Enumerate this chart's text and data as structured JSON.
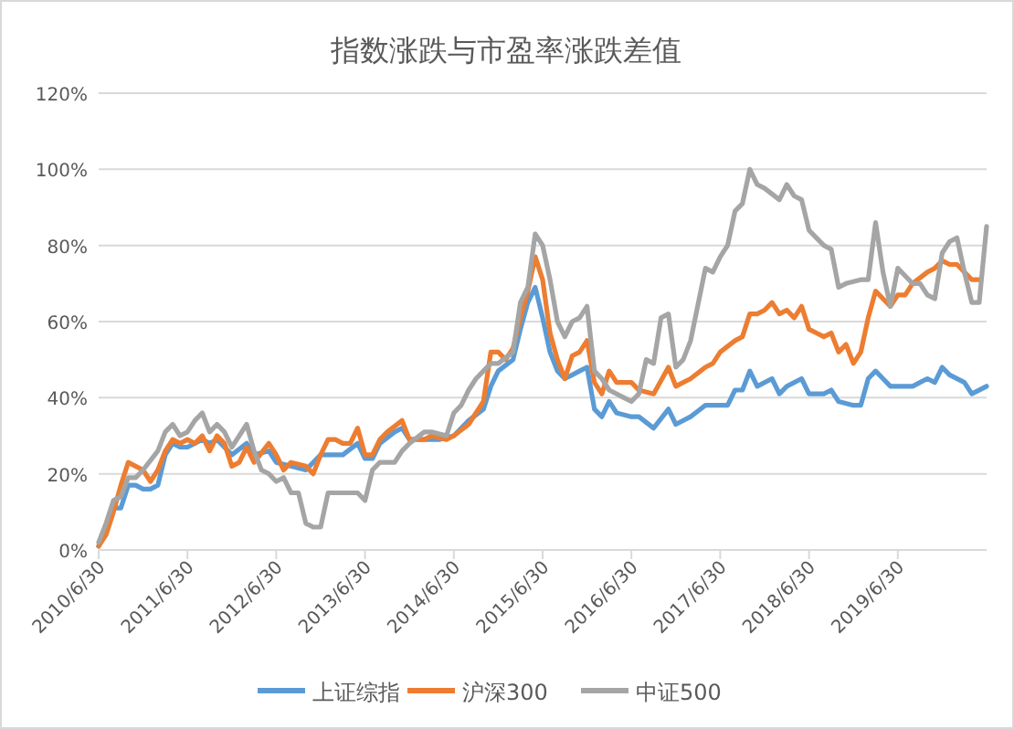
{
  "chart_data": {
    "type": "line",
    "title": "指数涨跌与市盈率涨跌差值",
    "xlim": [
      "2010-06",
      "2020-06"
    ],
    "xticks": [
      {
        "value": "2010-06",
        "label": "2010/6/30"
      },
      {
        "value": "2011-06",
        "label": "2011/6/30"
      },
      {
        "value": "2012-06",
        "label": "2012/6/30"
      },
      {
        "value": "2013-06",
        "label": "2013/6/30"
      },
      {
        "value": "2014-06",
        "label": "2014/6/30"
      },
      {
        "value": "2015-06",
        "label": "2015/6/30"
      },
      {
        "value": "2016-06",
        "label": "2016/6/30"
      },
      {
        "value": "2017-06",
        "label": "2017/6/30"
      },
      {
        "value": "2018-06",
        "label": "2018/6/30"
      },
      {
        "value": "2019-06",
        "label": "2019/6/30"
      }
    ],
    "ylim": [
      0,
      120
    ],
    "yticks": [
      {
        "value": 0,
        "label": "0%"
      },
      {
        "value": 20,
        "label": "20%"
      },
      {
        "value": 40,
        "label": "40%"
      },
      {
        "value": 60,
        "label": "60%"
      },
      {
        "value": 80,
        "label": "80%"
      },
      {
        "value": 100,
        "label": "100%"
      },
      {
        "value": 120,
        "label": "120%"
      }
    ],
    "grid": "y",
    "legend": "bottom",
    "marker": "none",
    "line_style": "solid",
    "series": [
      {
        "name": "上证综指",
        "color": "#5b9bd5",
        "x": [
          "2010-06",
          "2010-07",
          "2010-08",
          "2010-09",
          "2010-10",
          "2010-11",
          "2010-12",
          "2011-01",
          "2011-02",
          "2011-03",
          "2011-04",
          "2011-05",
          "2011-06",
          "2011-08",
          "2011-09",
          "2011-10",
          "2011-12",
          "2012-02",
          "2012-03",
          "2012-05",
          "2012-06",
          "2012-08",
          "2012-10",
          "2012-12",
          "2013-01",
          "2013-03",
          "2013-05",
          "2013-06",
          "2013-07",
          "2013-08",
          "2013-10",
          "2013-11",
          "2013-12",
          "2014-02",
          "2014-04",
          "2014-06",
          "2014-08",
          "2014-10",
          "2014-11",
          "2014-12",
          "2015-02",
          "2015-03",
          "2015-04",
          "2015-05",
          "2015-06",
          "2015-07",
          "2015-08",
          "2015-09",
          "2015-10",
          "2015-11",
          "2015-12",
          "2016-01",
          "2016-02",
          "2016-03",
          "2016-04",
          "2016-06",
          "2016-07",
          "2016-09",
          "2016-11",
          "2016-12",
          "2017-02",
          "2017-04",
          "2017-06",
          "2017-07",
          "2017-08",
          "2017-09",
          "2017-10",
          "2017-11",
          "2018-01",
          "2018-02",
          "2018-03",
          "2018-05",
          "2018-06",
          "2018-08",
          "2018-09",
          "2018-10",
          "2018-12",
          "2019-01",
          "2019-02",
          "2019-03",
          "2019-04",
          "2019-05",
          "2019-06",
          "2019-08",
          "2019-09",
          "2019-10",
          "2019-11",
          "2019-12",
          "2020-01",
          "2020-03",
          "2020-04",
          "2020-06"
        ],
        "values": [
          1,
          5,
          11,
          11,
          17,
          17,
          16,
          16,
          17,
          25,
          28,
          27,
          27,
          29,
          28,
          29,
          25,
          28,
          25,
          26,
          23,
          22,
          21,
          25,
          25,
          25,
          28,
          24,
          24,
          28,
          31,
          32,
          29,
          29,
          29,
          30,
          34,
          37,
          43,
          47,
          50,
          58,
          65,
          69,
          61,
          52,
          47,
          45,
          46,
          47,
          48,
          37,
          35,
          39,
          36,
          35,
          35,
          32,
          37,
          33,
          35,
          38,
          38,
          38,
          42,
          42,
          47,
          43,
          45,
          41,
          43,
          45,
          41,
          41,
          42,
          39,
          38,
          38,
          45,
          47,
          45,
          43,
          43,
          43,
          44,
          45,
          44,
          48,
          46,
          44,
          41,
          43
        ]
      },
      {
        "name": "沪深300",
        "color": "#ed7d31",
        "x": [
          "2010-06",
          "2010-07",
          "2010-08",
          "2010-09",
          "2010-10",
          "2010-11",
          "2010-12",
          "2011-01",
          "2011-02",
          "2011-03",
          "2011-04",
          "2011-05",
          "2011-06",
          "2011-07",
          "2011-08",
          "2011-09",
          "2011-10",
          "2011-11",
          "2011-12",
          "2012-01",
          "2012-02",
          "2012-03",
          "2012-05",
          "2012-06",
          "2012-07",
          "2012-08",
          "2012-10",
          "2012-11",
          "2012-12",
          "2013-01",
          "2013-02",
          "2013-03",
          "2013-04",
          "2013-05",
          "2013-06",
          "2013-07",
          "2013-08",
          "2013-09",
          "2013-11",
          "2013-12",
          "2014-02",
          "2014-03",
          "2014-05",
          "2014-06",
          "2014-08",
          "2014-10",
          "2014-11",
          "2014-12",
          "2015-01",
          "2015-02",
          "2015-03",
          "2015-04",
          "2015-05",
          "2015-06",
          "2015-07",
          "2015-08",
          "2015-09",
          "2015-10",
          "2015-11",
          "2015-12",
          "2016-01",
          "2016-02",
          "2016-03",
          "2016-04",
          "2016-06",
          "2016-07",
          "2016-09",
          "2016-11",
          "2016-12",
          "2017-01",
          "2017-02",
          "2017-04",
          "2017-05",
          "2017-06",
          "2017-08",
          "2017-09",
          "2017-10",
          "2017-11",
          "2017-12",
          "2018-01",
          "2018-02",
          "2018-03",
          "2018-04",
          "2018-05",
          "2018-06",
          "2018-07",
          "2018-08",
          "2018-09",
          "2018-10",
          "2018-11",
          "2018-12",
          "2019-01",
          "2019-02",
          "2019-03",
          "2019-04",
          "2019-05",
          "2019-06",
          "2019-07",
          "2019-08",
          "2019-10",
          "2019-11",
          "2019-12",
          "2020-01",
          "2020-02",
          "2020-03",
          "2020-04",
          "2020-05"
        ],
        "values": [
          1,
          4,
          10,
          17,
          23,
          22,
          21,
          18,
          21,
          26,
          29,
          28,
          29,
          28,
          30,
          26,
          30,
          28,
          22,
          23,
          27,
          23,
          28,
          25,
          21,
          23,
          22,
          20,
          25,
          29,
          29,
          28,
          28,
          32,
          25,
          25,
          29,
          31,
          34,
          29,
          29,
          30,
          29,
          30,
          33,
          39,
          52,
          52,
          50,
          53,
          61,
          68,
          77,
          71,
          57,
          50,
          45,
          51,
          52,
          55,
          44,
          41,
          47,
          44,
          44,
          42,
          41,
          48,
          43,
          44,
          45,
          48,
          49,
          52,
          55,
          56,
          62,
          62,
          63,
          65,
          62,
          63,
          61,
          64,
          58,
          57,
          56,
          57,
          52,
          54,
          49,
          52,
          61,
          68,
          66,
          64,
          67,
          67,
          70,
          73,
          74,
          76,
          75,
          75,
          73,
          71,
          71
        ]
      },
      {
        "name": "中证500",
        "color": "#a5a5a5",
        "x": [
          "2010-06",
          "2010-07",
          "2010-08",
          "2010-09",
          "2010-10",
          "2010-11",
          "2010-12",
          "2011-02",
          "2011-03",
          "2011-04",
          "2011-05",
          "2011-06",
          "2011-07",
          "2011-08",
          "2011-09",
          "2011-10",
          "2011-11",
          "2011-12",
          "2012-02",
          "2012-03",
          "2012-04",
          "2012-05",
          "2012-06",
          "2012-07",
          "2012-08",
          "2012-09",
          "2012-10",
          "2012-11",
          "2012-12",
          "2013-01",
          "2013-02",
          "2013-03",
          "2013-05",
          "2013-06",
          "2013-07",
          "2013-08",
          "2013-10",
          "2013-11",
          "2013-12",
          "2014-02",
          "2014-03",
          "2014-05",
          "2014-06",
          "2014-07",
          "2014-08",
          "2014-09",
          "2014-10",
          "2014-11",
          "2014-12",
          "2015-02",
          "2015-03",
          "2015-04",
          "2015-05",
          "2015-06",
          "2015-07",
          "2015-08",
          "2015-09",
          "2015-10",
          "2015-11",
          "2015-12",
          "2016-01",
          "2016-02",
          "2016-03",
          "2016-05",
          "2016-06",
          "2016-07",
          "2016-08",
          "2016-09",
          "2016-10",
          "2016-11",
          "2016-12",
          "2017-01",
          "2017-02",
          "2017-04",
          "2017-05",
          "2017-06",
          "2017-07",
          "2017-08",
          "2017-09",
          "2017-10",
          "2017-11",
          "2017-12",
          "2018-02",
          "2018-03",
          "2018-04",
          "2018-05",
          "2018-06",
          "2018-07",
          "2018-08",
          "2018-09",
          "2018-10",
          "2018-11",
          "2019-01",
          "2019-02",
          "2019-03",
          "2019-04",
          "2019-05",
          "2019-06",
          "2019-07",
          "2019-08",
          "2019-09",
          "2019-10",
          "2019-11",
          "2019-12",
          "2020-01",
          "2020-02",
          "2020-03",
          "2020-04",
          "2020-05",
          "2020-06"
        ],
        "values": [
          2,
          7,
          13,
          14,
          19,
          19,
          21,
          26,
          31,
          33,
          30,
          31,
          34,
          36,
          31,
          33,
          31,
          27,
          33,
          26,
          21,
          20,
          18,
          19,
          15,
          15,
          7,
          6,
          6,
          15,
          15,
          15,
          15,
          13,
          21,
          23,
          23,
          26,
          28,
          31,
          31,
          30,
          36,
          38,
          42,
          45,
          47,
          49,
          49,
          52,
          65,
          69,
          83,
          80,
          71,
          60,
          56,
          60,
          61,
          64,
          47,
          45,
          42,
          40,
          39,
          41,
          50,
          49,
          61,
          62,
          48,
          50,
          55,
          74,
          73,
          77,
          80,
          89,
          91,
          100,
          96,
          95,
          92,
          96,
          93,
          92,
          84,
          82,
          80,
          79,
          69,
          70,
          71,
          71,
          86,
          73,
          64,
          74,
          72,
          70,
          70,
          67,
          66,
          78,
          81,
          82,
          73,
          65,
          65,
          85
        ]
      }
    ]
  }
}
